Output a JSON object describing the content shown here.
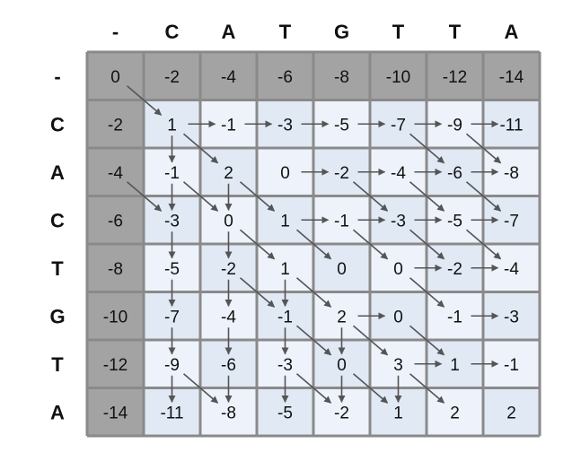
{
  "col_headers": [
    "-",
    "C",
    "A",
    "T",
    "G",
    "T",
    "T",
    "A"
  ],
  "row_headers": [
    "-",
    "C",
    "A",
    "C",
    "T",
    "G",
    "T",
    "A"
  ],
  "matrix": [
    [
      "0",
      "-2",
      "-4",
      "-6",
      "-8",
      "-10",
      "-12",
      "-14"
    ],
    [
      "-2",
      "1",
      "-1",
      "-3",
      "-5",
      "-7",
      "-9",
      "-11"
    ],
    [
      "-4",
      "-1",
      "2",
      "0",
      "-2",
      "-4",
      "-6",
      "-8"
    ],
    [
      "-6",
      "-3",
      "0",
      "1",
      "-1",
      "-3",
      "-5",
      "-7"
    ],
    [
      "-8",
      "-5",
      "-2",
      "1",
      "0",
      "0",
      "-2",
      "-4"
    ],
    [
      "-10",
      "-7",
      "-4",
      "-1",
      "2",
      "0",
      "-1",
      "-3"
    ],
    [
      "-12",
      "-9",
      "-6",
      "-3",
      "0",
      "3",
      "1",
      "-1"
    ],
    [
      "-14",
      "-11",
      "-8",
      "-5",
      "-2",
      "1",
      "2",
      "2"
    ]
  ],
  "arrows": {
    "diagonal": [
      [
        0,
        0
      ],
      [
        1,
        1
      ],
      [
        1,
        5
      ],
      [
        1,
        6
      ],
      [
        2,
        0
      ],
      [
        2,
        1
      ],
      [
        2,
        2
      ],
      [
        2,
        4
      ],
      [
        2,
        5
      ],
      [
        2,
        6
      ],
      [
        3,
        2
      ],
      [
        3,
        3
      ],
      [
        3,
        4
      ],
      [
        3,
        5
      ],
      [
        3,
        6
      ],
      [
        4,
        2
      ],
      [
        4,
        3
      ],
      [
        4,
        5
      ],
      [
        5,
        3
      ],
      [
        5,
        4
      ],
      [
        5,
        5
      ],
      [
        6,
        1
      ],
      [
        6,
        3
      ],
      [
        6,
        4
      ],
      [
        6,
        5
      ]
    ],
    "right": [
      [
        1,
        1
      ],
      [
        1,
        2
      ],
      [
        1,
        3
      ],
      [
        1,
        4
      ],
      [
        1,
        5
      ],
      [
        1,
        6
      ],
      [
        2,
        3
      ],
      [
        2,
        4
      ],
      [
        2,
        5
      ],
      [
        2,
        6
      ],
      [
        3,
        3
      ],
      [
        3,
        4
      ],
      [
        3,
        5
      ],
      [
        3,
        6
      ],
      [
        4,
        5
      ],
      [
        4,
        6
      ],
      [
        5,
        4
      ],
      [
        5,
        6
      ],
      [
        6,
        5
      ],
      [
        6,
        6
      ]
    ],
    "down": [
      [
        1,
        1
      ],
      [
        2,
        1
      ],
      [
        2,
        2
      ],
      [
        3,
        1
      ],
      [
        3,
        2
      ],
      [
        4,
        1
      ],
      [
        4,
        2
      ],
      [
        4,
        3
      ],
      [
        5,
        1
      ],
      [
        5,
        2
      ],
      [
        5,
        3
      ],
      [
        5,
        4
      ],
      [
        6,
        1
      ],
      [
        6,
        2
      ],
      [
        6,
        3
      ],
      [
        6,
        4
      ],
      [
        6,
        5
      ]
    ]
  },
  "colors": {
    "header_cell": "#a3a3a3",
    "cell_dark": "#e1e9f5",
    "cell_light": "#eef2fa",
    "border": "#8a8a8a",
    "arrow": "#555555"
  }
}
